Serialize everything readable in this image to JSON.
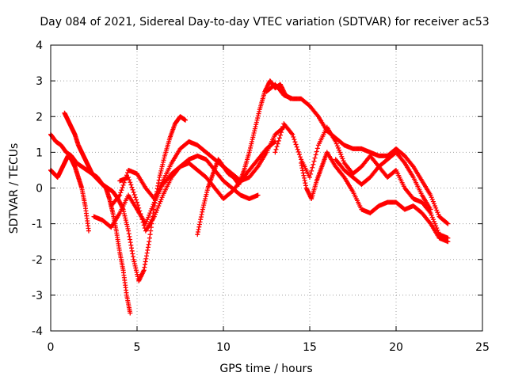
{
  "chart_data": {
    "type": "scatter",
    "title": "Day 084 of 2021, Sidereal Day-to-day VTEC variation (SDTVAR) for receiver ac53",
    "xlabel": "GPS time / hours",
    "ylabel": "SDTVAR / TECUs",
    "xlim": [
      0,
      25
    ],
    "ylim": [
      -4,
      4
    ],
    "x_ticks": [
      0,
      5,
      10,
      15,
      20,
      25
    ],
    "x_tick_labels": [
      "0",
      "5",
      "10",
      "15",
      "20",
      "25"
    ],
    "y_ticks": [
      -4,
      -3,
      -2,
      -1,
      0,
      1,
      2,
      3,
      4
    ],
    "y_tick_labels": [
      "-4",
      "-3",
      "-2",
      "-1",
      "0",
      "1",
      "2",
      "3",
      "4"
    ],
    "grid": true,
    "marker": "+",
    "marker_color": "#ff0000",
    "series": [
      {
        "name": "track-1",
        "x": [
          0.0,
          0.3,
          0.6,
          0.9,
          1.2,
          1.5,
          1.8,
          2.1,
          2.4,
          2.7,
          3.0,
          3.3,
          3.6,
          3.9,
          4.2,
          4.5,
          4.8,
          5.1,
          5.4,
          5.7,
          6.0,
          6.3,
          6.6,
          6.9,
          7.2,
          7.5,
          7.8
        ],
        "y": [
          1.5,
          1.3,
          1.2,
          1.0,
          0.9,
          0.7,
          0.6,
          0.5,
          0.4,
          0.3,
          0.1,
          0.0,
          -0.1,
          -0.3,
          -0.6,
          -1.2,
          -2.0,
          -2.6,
          -2.3,
          -1.5,
          -0.5,
          0.3,
          0.9,
          1.4,
          1.8,
          2.0,
          1.9
        ]
      },
      {
        "name": "track-2",
        "x": [
          0.0,
          0.2,
          0.4,
          0.6,
          0.8,
          1.0,
          1.2,
          1.4,
          1.6,
          1.8,
          2.0,
          2.2
        ],
        "y": [
          0.5,
          0.4,
          0.3,
          0.5,
          0.7,
          0.9,
          0.8,
          0.6,
          0.3,
          0.0,
          -0.5,
          -1.2
        ]
      },
      {
        "name": "track-3",
        "x": [
          0.8,
          1.0,
          1.2,
          1.4,
          1.6,
          1.8,
          2.0,
          2.2,
          2.4,
          2.6,
          2.8,
          3.0,
          3.2,
          3.4,
          3.6,
          3.8,
          4.0,
          4.2,
          4.4,
          4.6
        ],
        "y": [
          2.1,
          1.9,
          1.7,
          1.5,
          1.2,
          1.0,
          0.8,
          0.6,
          0.4,
          0.3,
          0.2,
          0.1,
          0.0,
          -0.3,
          -0.7,
          -1.2,
          -1.8,
          -2.3,
          -3.0,
          -3.5
        ]
      },
      {
        "name": "track-4",
        "x": [
          2.5,
          3.0,
          3.5,
          4.0,
          4.5,
          5.0,
          5.5,
          6.0,
          6.5,
          7.0,
          7.5,
          8.0,
          8.5,
          9.0,
          9.5,
          10.0,
          10.5,
          11.0,
          11.5,
          12.0
        ],
        "y": [
          -0.8,
          -0.9,
          -1.1,
          -0.7,
          -0.2,
          -0.6,
          -1.0,
          -0.4,
          0.1,
          0.4,
          0.6,
          0.8,
          0.9,
          0.8,
          0.5,
          0.2,
          0.0,
          -0.2,
          -0.3,
          -0.2
        ]
      },
      {
        "name": "track-5",
        "x": [
          3.5,
          4.0,
          4.5,
          5.0,
          5.5,
          6.0,
          6.5,
          7.0,
          7.5,
          8.0,
          8.5,
          9.0,
          9.5,
          10.0,
          10.5,
          11.0,
          11.5,
          12.0,
          12.5,
          13.0,
          13.5
        ],
        "y": [
          -0.5,
          -0.2,
          0.5,
          0.4,
          0.0,
          -0.3,
          0.2,
          0.7,
          1.1,
          1.3,
          1.2,
          1.0,
          0.8,
          0.6,
          0.4,
          0.2,
          0.3,
          0.6,
          1.0,
          1.5,
          1.7
        ]
      },
      {
        "name": "track-6",
        "x": [
          4.0,
          4.5,
          5.0,
          5.5,
          6.0,
          6.5,
          7.0,
          7.5,
          8.0,
          8.5,
          9.0,
          9.5,
          10.0,
          10.5,
          11.0,
          11.5,
          12.0,
          12.5,
          13.0
        ],
        "y": [
          0.2,
          0.3,
          -0.4,
          -1.2,
          -0.8,
          -0.2,
          0.3,
          0.6,
          0.7,
          0.5,
          0.3,
          0.0,
          -0.3,
          -0.1,
          0.2,
          0.5,
          0.8,
          1.1,
          1.3
        ]
      },
      {
        "name": "track-7",
        "x": [
          8.5,
          8.8,
          9.1,
          9.4,
          9.7,
          10.0,
          10.3,
          10.6,
          10.9,
          11.2,
          11.5,
          11.8,
          12.1,
          12.4,
          12.7,
          13.0,
          13.3,
          13.6,
          13.9
        ],
        "y": [
          -1.3,
          -0.6,
          0.0,
          0.4,
          0.8,
          0.6,
          0.4,
          0.3,
          0.1,
          0.5,
          1.0,
          1.6,
          2.2,
          2.7,
          3.0,
          2.8,
          2.9,
          2.6,
          2.5
        ]
      },
      {
        "name": "track-8",
        "x": [
          12.5,
          13.0,
          13.5,
          14.0,
          14.5,
          15.0,
          15.5,
          16.0,
          16.5,
          17.0,
          17.5,
          18.0,
          18.5,
          19.0,
          19.5,
          20.0,
          20.5,
          21.0,
          21.5,
          22.0,
          22.5,
          23.0
        ],
        "y": [
          2.7,
          2.9,
          2.6,
          2.5,
          2.5,
          2.3,
          2.0,
          1.6,
          1.4,
          1.2,
          1.1,
          1.1,
          1.0,
          0.9,
          0.9,
          1.1,
          0.9,
          0.6,
          0.2,
          -0.2,
          -0.8,
          -1.0
        ]
      },
      {
        "name": "track-9",
        "x": [
          13.0,
          13.5,
          14.0,
          14.5,
          15.0,
          15.5,
          16.0,
          16.5,
          17.0,
          17.5,
          18.0,
          18.5,
          19.0,
          19.5,
          20.0,
          20.5,
          21.0,
          21.5,
          22.0,
          22.5,
          23.0
        ],
        "y": [
          1.0,
          1.8,
          1.5,
          0.8,
          0.3,
          1.2,
          1.7,
          1.3,
          0.7,
          0.4,
          0.6,
          0.9,
          0.6,
          0.3,
          0.5,
          0.0,
          -0.3,
          -0.4,
          -0.7,
          -1.3,
          -1.4
        ]
      },
      {
        "name": "track-10",
        "x": [
          14.5,
          14.8,
          15.1,
          15.4,
          15.7,
          16.0,
          16.5,
          17.0,
          17.5,
          18.0,
          18.5,
          19.0,
          19.5,
          20.0,
          20.5,
          21.0,
          21.5,
          22.0,
          22.5,
          23.0
        ],
        "y": [
          0.7,
          0.0,
          -0.3,
          0.2,
          0.6,
          1.0,
          0.6,
          0.3,
          -0.1,
          -0.6,
          -0.7,
          -0.5,
          -0.4,
          -0.4,
          -0.6,
          -0.5,
          -0.7,
          -1.0,
          -1.4,
          -1.5
        ]
      },
      {
        "name": "track-11",
        "x": [
          16.5,
          17.0,
          17.5,
          18.0,
          18.5,
          19.0,
          19.5,
          20.0,
          20.5,
          21.0,
          21.5,
          22.0
        ],
        "y": [
          0.8,
          0.5,
          0.3,
          0.1,
          0.3,
          0.6,
          0.8,
          1.0,
          0.7,
          0.3,
          -0.2,
          -0.6
        ]
      }
    ]
  }
}
